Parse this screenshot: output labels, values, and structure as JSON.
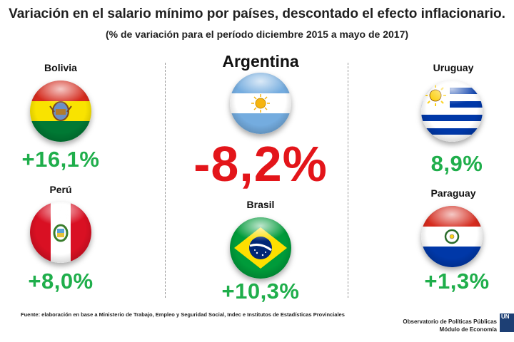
{
  "title": "Variación en el salario mínimo por países, descontado el efecto inflacionario.",
  "subtitle": "(% de variación para el período diciembre 2015 a mayo de 2017)",
  "countries": [
    {
      "name": "Bolivia",
      "value": "+16,1%"
    },
    {
      "name": "Perú",
      "value": "+8,0%"
    },
    {
      "name": "Argentina",
      "value": "-8,2%"
    },
    {
      "name": "Brasil",
      "value": "+10,3%"
    },
    {
      "name": "Uruguay",
      "value": "8,9%"
    },
    {
      "name": "Paraguay",
      "value": "+1,3%"
    }
  ],
  "footer": {
    "source": "Fuente: elaboración en base a Ministerio de Trabajo, Empleo y Seguridad Social, Indec e Institutos de Estadísticas Provinciales",
    "org_line1": "Observatorio de Políticas Públicas",
    "org_line2": "Módulo de Economía",
    "logo_text": "UN"
  },
  "colors": {
    "positive": "#1fae4b",
    "negative": "#e3151a"
  }
}
